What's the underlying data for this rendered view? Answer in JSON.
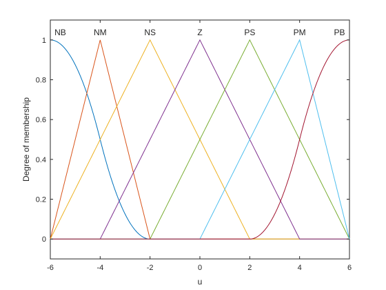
{
  "chart_data": {
    "type": "line",
    "title": "",
    "xlabel": "u",
    "ylabel": "Degree of membership",
    "xlim": [
      -6,
      6
    ],
    "ylim": [
      -0.1,
      1.1
    ],
    "xticks": [
      -6,
      -4,
      -2,
      0,
      2,
      4,
      6
    ],
    "yticks": [
      0,
      0.2,
      0.4,
      0.6,
      0.8,
      1
    ],
    "xtick_labels": [
      "-6",
      "-4",
      "-2",
      "0",
      "2",
      "4",
      "6"
    ],
    "ytick_labels": [
      "0",
      "0.2",
      "0.4",
      "0.6",
      "0.8",
      "1"
    ],
    "grid": false,
    "series": [
      {
        "name": "NB",
        "mf": "zmf",
        "params": [
          -6,
          -2
        ],
        "color": "#0072BD"
      },
      {
        "name": "NM",
        "mf": "trimf",
        "params": [
          -6,
          -4,
          -2
        ],
        "color": "#D95319"
      },
      {
        "name": "NS",
        "mf": "trimf",
        "params": [
          -6,
          -2,
          2
        ],
        "color": "#EDB120"
      },
      {
        "name": "Z",
        "mf": "trimf",
        "params": [
          -4,
          0,
          4
        ],
        "color": "#7E2F8E"
      },
      {
        "name": "PS",
        "mf": "trimf",
        "params": [
          -2,
          2,
          6
        ],
        "color": "#77AC30"
      },
      {
        "name": "PM",
        "mf": "trimf",
        "params": [
          0,
          4,
          6
        ],
        "color": "#4DBEEE"
      },
      {
        "name": "PB",
        "mf": "smf",
        "params": [
          2,
          6
        ],
        "color": "#A2142F"
      }
    ],
    "label_positions": [
      -5.6,
      -4,
      -2,
      0,
      2,
      4,
      5.6
    ]
  }
}
